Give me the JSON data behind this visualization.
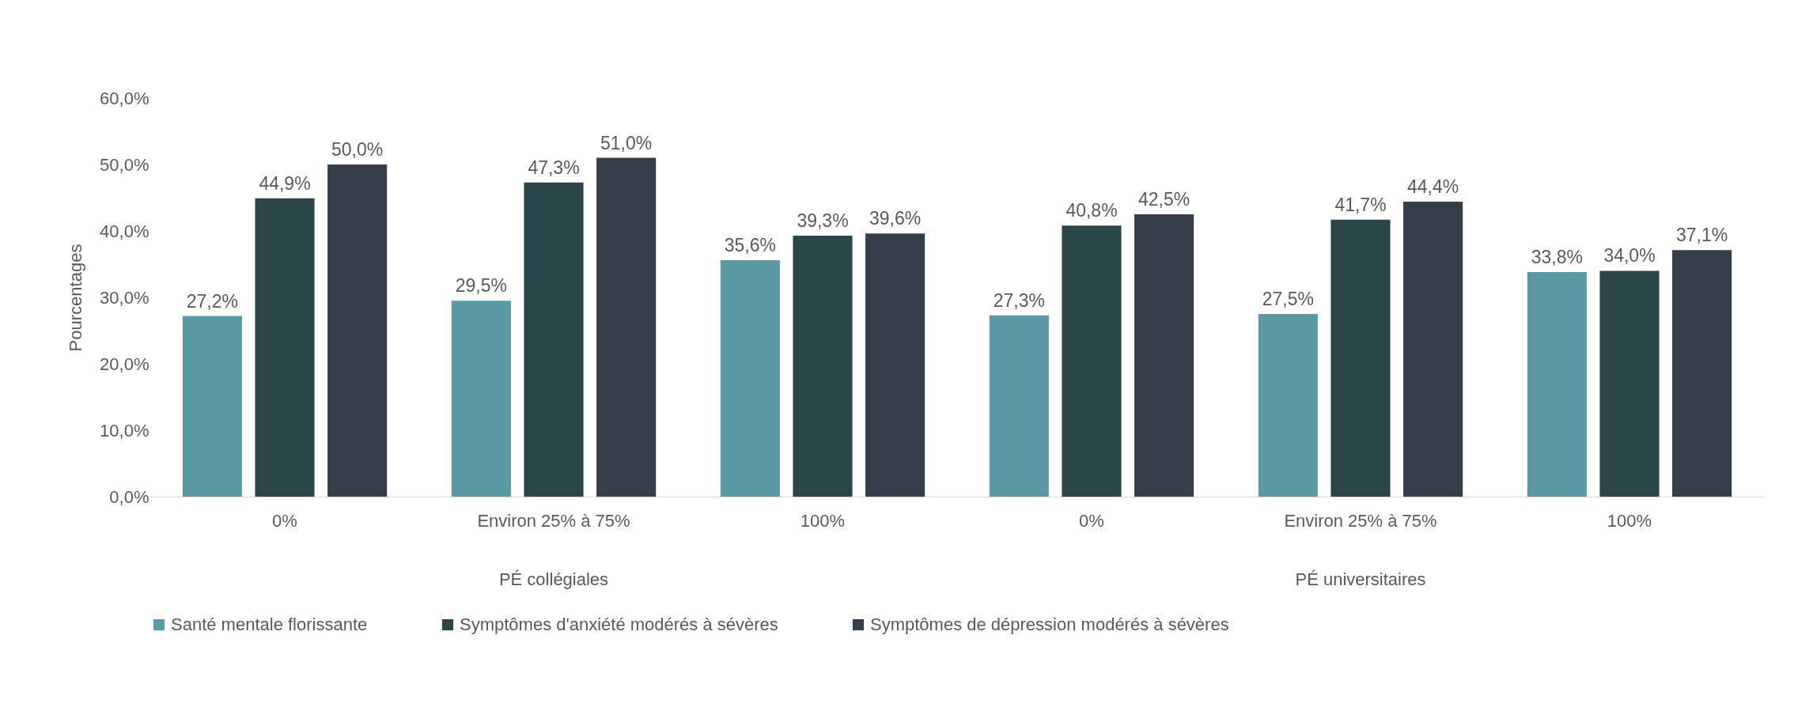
{
  "chart_data": {
    "type": "bar",
    "ylabel": "Pourcentages",
    "categories": [
      "0%",
      "Environ 25% à 75%",
      "100%",
      "0%",
      "Environ 25% à 75%",
      "100%"
    ],
    "annotations": [
      "PÉ collégiales",
      "PÉ universitaires"
    ],
    "series": [
      {
        "name": "Santé mentale florissante",
        "color": "#5a9aa5",
        "values": [
          27.2,
          29.5,
          35.6,
          27.3,
          27.5,
          33.8
        ],
        "value_labels": [
          "27,2%",
          "29,5%",
          "35,6%",
          "27,3%",
          "27,5%",
          "33,8%"
        ]
      },
      {
        "name": "Symptômes d'anxiété modérés à sévères",
        "color": "#2b4649",
        "values": [
          44.9,
          47.3,
          39.3,
          40.8,
          41.7,
          34.0
        ],
        "value_labels": [
          "44,9%",
          "47,3%",
          "39,3%",
          "40,8%",
          "41,7%",
          "34,0%"
        ]
      },
      {
        "name": "Symptômes de dépression modérés à sévères",
        "color": "#363e4c",
        "values": [
          50.0,
          51.0,
          39.6,
          42.5,
          44.4,
          37.1
        ],
        "value_labels": [
          "50,0%",
          "51,0%",
          "39,6%",
          "42,5%",
          "44,4%",
          "37,1%"
        ]
      }
    ],
    "ylim": [
      0,
      60
    ],
    "yticks": [
      {
        "value": 0,
        "label": "0,0%"
      },
      {
        "value": 10,
        "label": "10,0%"
      },
      {
        "value": 20,
        "label": "20,0%"
      },
      {
        "value": 30,
        "label": "30,0%"
      },
      {
        "value": 40,
        "label": "40,0%"
      },
      {
        "value": 50,
        "label": "50,0%"
      },
      {
        "value": 60,
        "label": "60,0%"
      }
    ],
    "grid": false,
    "legend": "bottom"
  }
}
